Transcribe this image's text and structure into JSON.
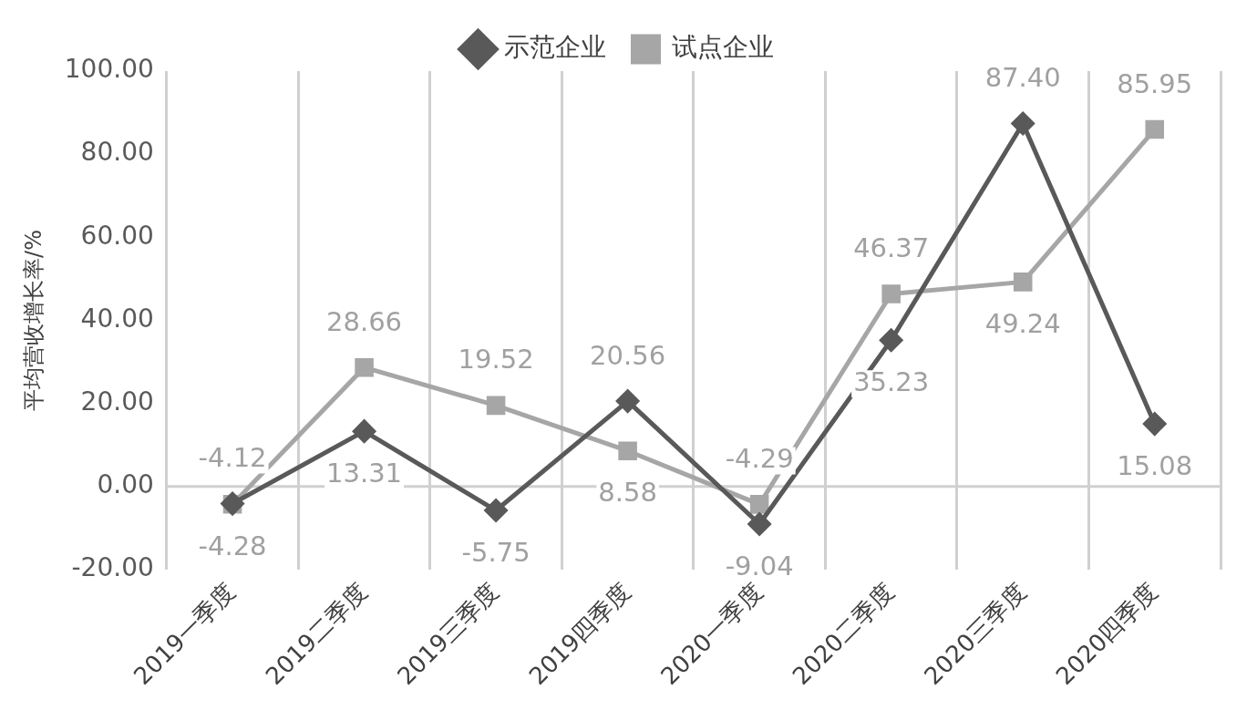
{
  "chart_data": {
    "type": "line",
    "ylabel": "平均营收增长率/%",
    "categories": [
      "2019一季度",
      "2019二季度",
      "2019三季度",
      "2019四季度",
      "2020一季度",
      "2020二季度",
      "2020三季度",
      "2020四季度"
    ],
    "series": [
      {
        "name": "示范企业",
        "color": "#595959",
        "marker": "diamond",
        "values": [
          -4.12,
          13.31,
          -5.75,
          20.56,
          -9.04,
          35.23,
          87.4,
          15.08
        ],
        "value_labels": [
          "-4.12",
          "13.31",
          "-5.75",
          "20.56",
          "-9.04",
          "35.23",
          "87.40",
          "15.08"
        ]
      },
      {
        "name": "试点企业",
        "color": "#a6a6a6",
        "marker": "square",
        "values": [
          -4.28,
          28.66,
          19.52,
          8.58,
          -4.29,
          46.37,
          49.24,
          85.95
        ],
        "value_labels": [
          "-4.28",
          "28.66",
          "19.52",
          "8.58",
          "-4.29",
          "46.37",
          "49.24",
          "85.95"
        ]
      }
    ],
    "ylim": [
      -20,
      100
    ],
    "yticks": [
      {
        "value": -20,
        "label": "-20.00"
      },
      {
        "value": 0,
        "label": "0.00"
      },
      {
        "value": 20,
        "label": "20.00"
      },
      {
        "value": 40,
        "label": "40.00"
      },
      {
        "value": 60,
        "label": "60.00"
      },
      {
        "value": 80,
        "label": "80.00"
      },
      {
        "value": 100,
        "label": "100.00"
      }
    ],
    "ref_lines": [
      {
        "axis": "y",
        "value": 0,
        "color": "#d0d0d0"
      }
    ],
    "grid": "x",
    "legend": "top",
    "line_style": "solid"
  }
}
